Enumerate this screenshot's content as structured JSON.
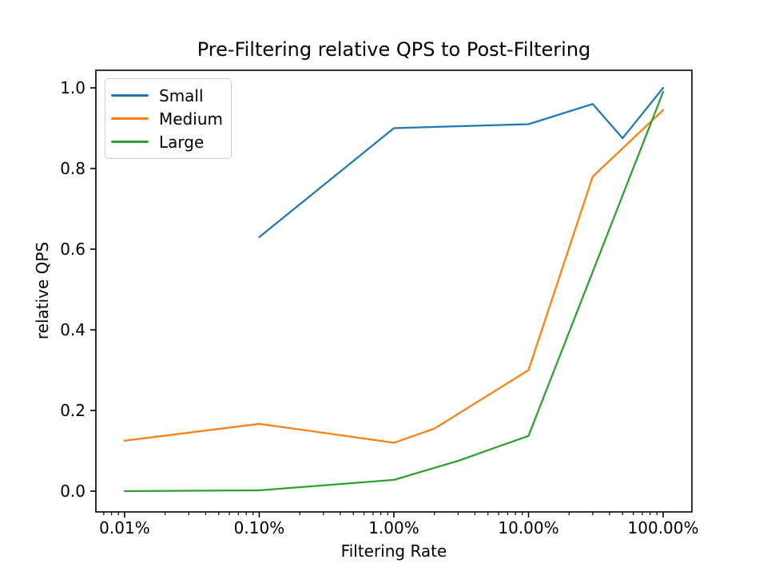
{
  "chart_data": {
    "type": "line",
    "title": "Pre-Filtering relative QPS to Post-Filtering",
    "xlabel": "Filtering Rate",
    "ylabel": "relative QPS",
    "x_scale": "log",
    "grid": false,
    "legend_position": "upper left",
    "background": "#ffffff",
    "axis_color": "#000000",
    "x_tick_labels": [
      "0.01%",
      "0.10%",
      "1.00%",
      "10.00%",
      "100.00%"
    ],
    "x_tick_values_pct": [
      0.01,
      0.1,
      1,
      10,
      100
    ],
    "y_tick_labels": [
      "0.0",
      "0.2",
      "0.4",
      "0.6",
      "0.8",
      "1.0"
    ],
    "y_tick_values": [
      0.0,
      0.2,
      0.4,
      0.6,
      0.8,
      1.0
    ],
    "xlim_pct": [
      0.00612,
      163.5
    ],
    "ylim": [
      -0.0515,
      1.0436
    ],
    "series": [
      {
        "name": "Small",
        "color": "#1f77b4",
        "x_pct": [
          0.1,
          1,
          10,
          30,
          50,
          100
        ],
        "y": [
          0.63,
          0.9,
          0.91,
          0.96,
          0.875,
          1.0
        ]
      },
      {
        "name": "Medium",
        "color": "#ff7f0e",
        "x_pct": [
          0.01,
          0.1,
          1,
          2,
          10,
          30,
          100
        ],
        "y": [
          0.125,
          0.167,
          0.12,
          0.155,
          0.3,
          0.78,
          0.945
        ]
      },
      {
        "name": "Large",
        "color": "#2ca02c",
        "x_pct": [
          0.01,
          0.1,
          1,
          3,
          10,
          100
        ],
        "y": [
          0.0,
          0.002,
          0.028,
          0.075,
          0.137,
          0.99
        ]
      }
    ]
  }
}
